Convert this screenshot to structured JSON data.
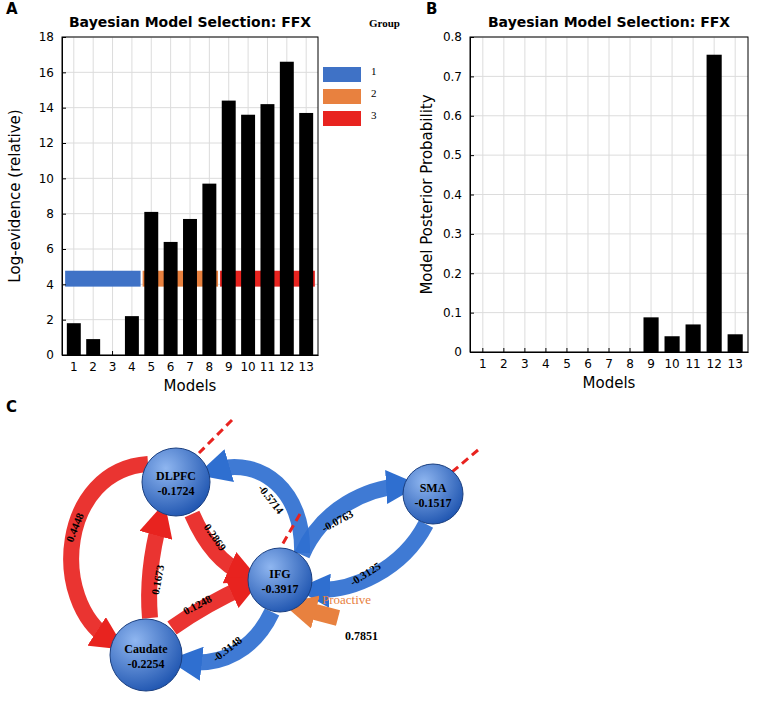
{
  "panel_labels": [
    "A",
    "B",
    "C"
  ],
  "chart_data": [
    {
      "type": "bar",
      "title": "Bayesian Model Selection: FFX",
      "x_label": "Models",
      "y_label": "Log-evidence (relative)",
      "categories": [
        "1",
        "2",
        "3",
        "4",
        "5",
        "6",
        "7",
        "8",
        "9",
        "10",
        "11",
        "12",
        "13"
      ],
      "values": [
        1.8,
        0.9,
        0,
        2.2,
        8.1,
        6.4,
        7.7,
        9.7,
        14.4,
        13.6,
        14.2,
        16.6,
        13.7
      ],
      "color": "#000000",
      "ylim": [
        0,
        18
      ],
      "yticks": [
        0,
        2,
        4,
        6,
        8,
        10,
        12,
        14,
        16,
        18
      ],
      "grid": true,
      "legend": "right",
      "legend_title": "Group",
      "groups": [
        {
          "name": "1",
          "color": "#3f72c6",
          "members": [
            "1",
            "2",
            "3",
            "4"
          ]
        },
        {
          "name": "2",
          "color": "#e8813f",
          "members": [
            "5",
            "6",
            "7",
            "8"
          ]
        },
        {
          "name": "3",
          "color": "#e8231f",
          "members": [
            "9",
            "10",
            "11",
            "12",
            "13"
          ]
        }
      ]
    },
    {
      "type": "bar",
      "title": "Bayesian Model Selection: FFX",
      "x_label": "Models",
      "y_label": "Model Posterior Probability",
      "categories": [
        "1",
        "2",
        "3",
        "4",
        "5",
        "6",
        "7",
        "8",
        "9",
        "10",
        "11",
        "12",
        "13"
      ],
      "values": [
        0,
        0,
        0,
        0,
        0,
        0,
        0,
        0,
        0.088,
        0.04,
        0.07,
        0.755,
        0.045
      ],
      "color": "#000000",
      "ylim": [
        0,
        0.8
      ],
      "yticks": [
        0,
        0.1,
        0.2,
        0.3,
        0.4,
        0.5,
        0.6,
        0.7,
        0.8
      ],
      "grid": true
    }
  ],
  "diagram": {
    "nodes": [
      {
        "id": "DLPFC",
        "label": "DLPFC",
        "value": -0.1724
      },
      {
        "id": "SMA",
        "label": "SMA",
        "value": -0.1517
      },
      {
        "id": "IFG",
        "label": "IFG",
        "value": -0.3917
      },
      {
        "id": "Caudate",
        "label": "Caudate",
        "value": -0.2254
      }
    ],
    "edges": [
      {
        "from": "DLPFC",
        "to": "Caudate",
        "value": 0.4448,
        "color": "#e8231f"
      },
      {
        "from": "DLPFC",
        "to": "IFG",
        "value": 0.2869,
        "color": "#e8231f"
      },
      {
        "from": "Caudate",
        "to": "DLPFC",
        "value": 0.1673,
        "color": "#e8231f"
      },
      {
        "from": "Caudate",
        "to": "IFG",
        "value": 0.1248,
        "color": "#e8231f"
      },
      {
        "from": "IFG",
        "to": "DLPFC",
        "value": -0.5714,
        "color": "#2f6fd0"
      },
      {
        "from": "IFG",
        "to": "SMA",
        "value": -0.0763,
        "color": "#2f6fd0"
      },
      {
        "from": "SMA",
        "to": "IFG",
        "value": -0.3125,
        "color": "#2f6fd0"
      },
      {
        "from": "IFG",
        "to": "Caudate",
        "value": -0.3148,
        "color": "#2f6fd0"
      }
    ],
    "input": {
      "label": "Proactive",
      "target": "IFG",
      "value": 0.7851,
      "color": "#e8813f"
    },
    "driving_inputs": [
      "DLPFC",
      "IFG",
      "SMA"
    ]
  }
}
